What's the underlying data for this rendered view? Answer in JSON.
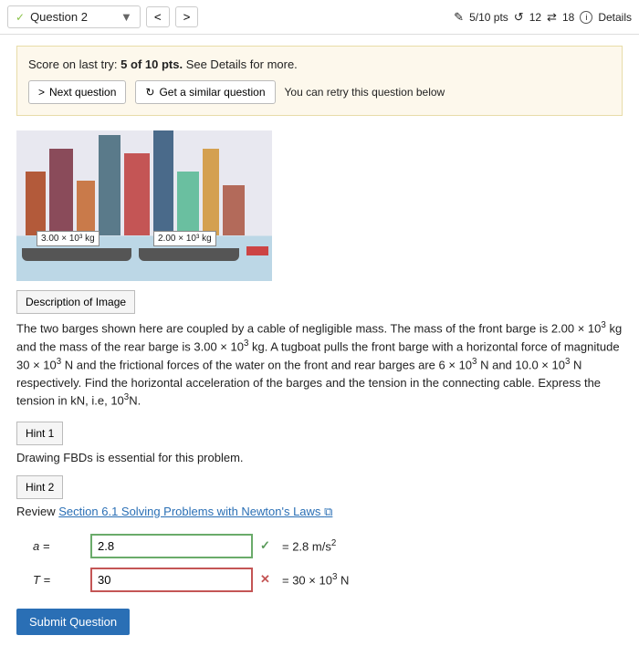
{
  "header": {
    "question_label": "Question 2",
    "prev_glyph": "<",
    "next_glyph": ">",
    "score_text": "5/10 pts",
    "retries": "12",
    "attempt_of": "18",
    "details": "Details"
  },
  "score_box": {
    "prefix": "Score on last try: ",
    "score": "5 of 10 pts.",
    "suffix": " See Details for more.",
    "next_btn": "Next question",
    "similar_btn": "Get a similar question",
    "retry_text": "You can retry this question below"
  },
  "illustration": {
    "label1": "3.00 × 10³ kg",
    "label2": "2.00 × 10³ kg"
  },
  "buttons": {
    "desc": "Description of Image",
    "hint1": "Hint 1",
    "hint2": "Hint 2"
  },
  "problem": {
    "text_html": "The two barges shown here are coupled by a cable of negligible mass. The mass of the front barge is 2.00 × 10<sup>3</sup> kg and the mass of the rear barge is 3.00 × 10<sup>3</sup> kg. A tugboat pulls the front barge with a horizontal force of magnitude 30 × 10<sup>3</sup> N and the frictional forces of the water on the front and rear barges are 6 × 10<sup>3</sup> N and 10.0 × 10<sup>3</sup> N respectively. Find the horizontal acceleration of the barges and the tension in the connecting cable. Express the tension in kN, i.e, 10<sup>3</sup>N."
  },
  "hints": {
    "h1": "Drawing FBDs is essential for this problem.",
    "h2_prefix": "Review ",
    "h2_link": "Section 6.1 Solving Problems with Newton's Laws"
  },
  "answers": {
    "a": {
      "label": "a  =",
      "value": "2.8",
      "correct": true,
      "result_html": "= 2.8 m/s<sup>2</sup>"
    },
    "T": {
      "label": "T  =",
      "value": "30",
      "correct": false,
      "result_html": "= 30  × 10<sup>3</sup> N"
    }
  },
  "submit": "Submit Question",
  "icons": {
    "check": "✓",
    "caret": "▼",
    "edit": "✎",
    "undo": "↺",
    "swap": "⇄",
    "info": "i",
    "chevron": ">",
    "refresh": "↻",
    "cross": "✕",
    "ext": "⧉"
  }
}
